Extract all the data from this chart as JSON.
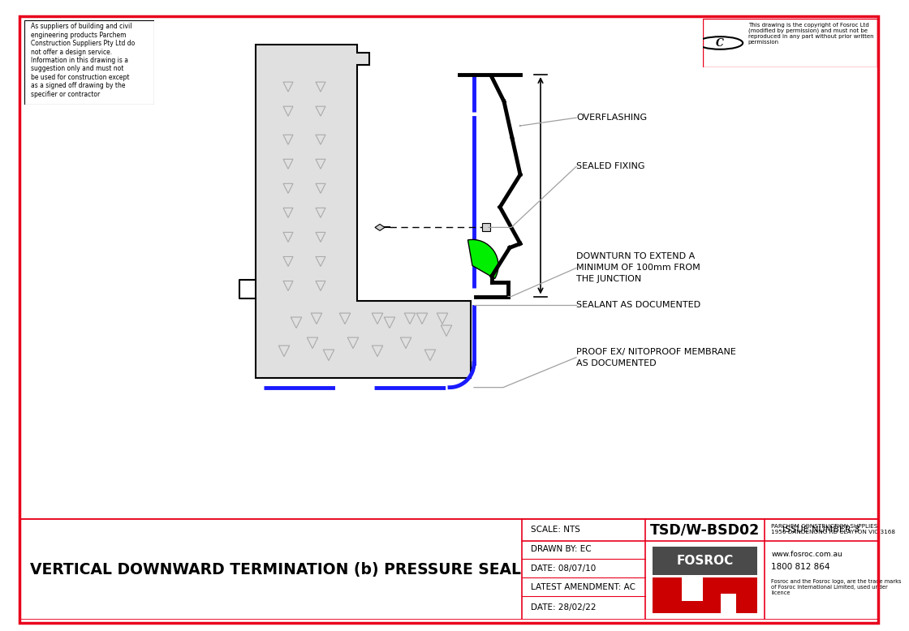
{
  "title": "VERTICAL DOWNWARD TERMINATION (b) PRESSURE SEAL",
  "drawing_id": "TSD/W-BSD02",
  "issue": "ISSUE NUMBER 3",
  "scale": "SCALE: NTS",
  "drawn_by": "DRAWN BY: EC",
  "date": "DATE: 08/07/10",
  "latest_amendment": "LATEST AMENDMENT: AC",
  "date2": "DATE: 28/02/22",
  "company": "PARCHEM CONSTRUCTION SUPPLIES\n1956 DANDENONG RD CLAYTON VIC 3168",
  "website": "www.fosroc.com.au",
  "phone": "1800 812 864",
  "trademark_text": "Fosroc and the Fosroc logo, are the trade marks\nof Fosroc International Limited, used under\nlicence",
  "copyright_text": "This drawing is the copyright of Fosroc Ltd\n(modified by permission) and must not be\nreproduced in any part without prior written\npermission",
  "disclaimer_text": "As suppliers of building and civil\nengineering products Parchem\nConstruction Suppliers Pty Ltd do\nnot offer a design service.\nInformation in this drawing is a\nsuggestion only and must not\nbe used for construction except\nas a signed off drawing by the\nspecifier or contractor",
  "labels": {
    "membrane": "PROOF EX/ NITOPROOF MEMBRANE\nAS DOCUMENTED",
    "sealant": "SEALANT AS DOCUMENTED",
    "downturn": "DOWNTURN TO EXTEND A\nMINIMUM OF 100mm FROM\nTHE JUNCTION",
    "sealed_fixing": "SEALED FIXING",
    "overflashing": "OVERFLASHING"
  },
  "border_color": "#e8001c",
  "line_color": "#000000",
  "blue_color": "#1a1aff",
  "green_color": "#00cc00",
  "bg_color": "#ffffff",
  "concrete_color": "#e0e0e0",
  "label_line_color": "#a0a0a0"
}
